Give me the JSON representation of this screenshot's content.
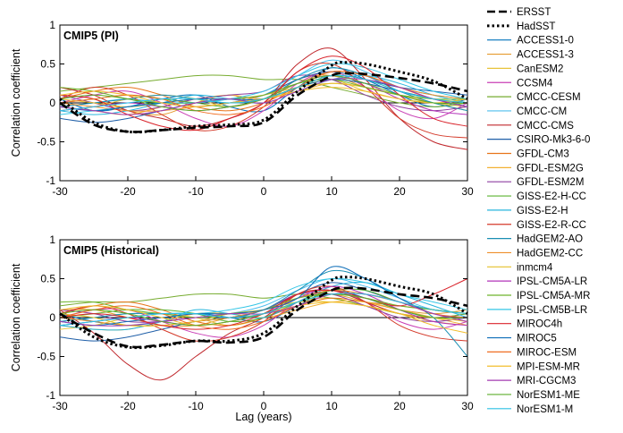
{
  "chart_data": {
    "type": "line",
    "xlabel": "Lag (years)",
    "x_ticks": [
      "-30",
      "-20",
      "-10",
      "0",
      "10",
      "20",
      "30"
    ],
    "y_ticks": [
      "1",
      "0.5",
      "0",
      "-0.5",
      "-1"
    ],
    "xlim": [
      -30,
      30
    ],
    "ylim": [
      -1,
      1
    ],
    "legend": {
      "placement": "right",
      "observations": [
        {
          "name": "ERSST",
          "color": "#000000",
          "dash": "dashed"
        },
        {
          "name": "HadSST",
          "color": "#000000",
          "dash": "dotted"
        }
      ],
      "models": [
        {
          "name": "ACCESS1-0",
          "color": "#0072bd"
        },
        {
          "name": "ACCESS1-3",
          "color": "#e69a2e"
        },
        {
          "name": "CanESM2",
          "color": "#e8c33a"
        },
        {
          "name": "CCSM4",
          "color": "#c93fb5"
        },
        {
          "name": "CMCC-CESM",
          "color": "#77ac30"
        },
        {
          "name": "CMCC-CM",
          "color": "#4dbeee"
        },
        {
          "name": "CMCC-CMS",
          "color": "#c0282d"
        },
        {
          "name": "CSIRO-Mk3-6-0",
          "color": "#1f5fa8"
        },
        {
          "name": "GFDL-CM3",
          "color": "#e8741a"
        },
        {
          "name": "GFDL-ESM2G",
          "color": "#f2b134"
        },
        {
          "name": "GFDL-ESM2M",
          "color": "#8e3fa0"
        },
        {
          "name": "GISS-E2-H-CC",
          "color": "#5bb330"
        },
        {
          "name": "GISS-E2-H",
          "color": "#27b6dd"
        },
        {
          "name": "GISS-E2-R-CC",
          "color": "#d43a2a"
        },
        {
          "name": "HadGEM2-AO",
          "color": "#1a8fb3"
        },
        {
          "name": "HadGEM2-CC",
          "color": "#ee8f2a"
        },
        {
          "name": "inmcm4",
          "color": "#e6c02a"
        },
        {
          "name": "IPSL-CM5A-LR",
          "color": "#b233b8"
        },
        {
          "name": "IPSL-CM5A-MR",
          "color": "#6eb52c"
        },
        {
          "name": "IPSL-CM5B-LR",
          "color": "#35c6e6"
        },
        {
          "name": "MIROC4h",
          "color": "#d9232b"
        },
        {
          "name": "MIROC5",
          "color": "#0e6eb8"
        },
        {
          "name": "MIROC-ESM",
          "color": "#f06e22"
        },
        {
          "name": "MPI-ESM-MR",
          "color": "#f2be2e"
        },
        {
          "name": "MRI-CGCM3",
          "color": "#a33ab0"
        },
        {
          "name": "NorESM1-ME",
          "color": "#5cae2c"
        },
        {
          "name": "NorESM1-M",
          "color": "#2bc0e4"
        }
      ]
    },
    "panels": [
      {
        "title": "CMIP5 (PI)",
        "ylabel": "Correlation coefficient",
        "observations": {
          "x": [
            -30,
            -25,
            -20,
            -15,
            -10,
            -5,
            0,
            5,
            10,
            12,
            15,
            20,
            25,
            30
          ],
          "ERSST": [
            0.0,
            -0.28,
            -0.37,
            -0.35,
            -0.32,
            -0.3,
            -0.25,
            0.1,
            0.35,
            0.38,
            0.37,
            0.32,
            0.25,
            0.15
          ],
          "HadSST": [
            0.05,
            -0.25,
            -0.37,
            -0.35,
            -0.3,
            -0.28,
            -0.22,
            0.15,
            0.48,
            0.52,
            0.5,
            0.4,
            0.28,
            0.05
          ]
        },
        "models": [
          [
            0.05,
            -0.1,
            -0.05,
            0.05,
            0.1,
            -0.05,
            -0.1,
            0.2,
            0.45,
            0.3,
            0.1,
            -0.05,
            0.05
          ],
          [
            0.1,
            0.05,
            -0.1,
            -0.15,
            0.0,
            0.1,
            0.0,
            0.3,
            0.35,
            0.2,
            0.1,
            0.0,
            0.05
          ],
          [
            -0.1,
            -0.05,
            0.05,
            0.1,
            0.05,
            -0.05,
            0.05,
            0.25,
            0.3,
            0.15,
            0.05,
            0.0,
            -0.05
          ],
          [
            0.0,
            0.1,
            0.15,
            0.0,
            -0.2,
            -0.3,
            -0.1,
            0.25,
            0.4,
            0.2,
            -0.1,
            -0.2,
            0.0
          ],
          [
            0.15,
            0.2,
            0.25,
            0.3,
            0.35,
            0.35,
            0.3,
            0.3,
            0.2,
            0.1,
            0.0,
            -0.05,
            0.0
          ],
          [
            -0.05,
            0.0,
            0.05,
            0.0,
            -0.05,
            0.0,
            0.1,
            0.35,
            0.55,
            0.4,
            0.2,
            0.1,
            0.05
          ],
          [
            0.2,
            0.1,
            -0.1,
            -0.2,
            -0.3,
            -0.2,
            0.0,
            0.5,
            0.7,
            0.3,
            -0.2,
            -0.5,
            -0.6
          ],
          [
            -0.2,
            -0.25,
            -0.2,
            -0.1,
            0.0,
            0.05,
            0.1,
            0.3,
            0.4,
            0.3,
            0.2,
            0.15,
            0.1
          ],
          [
            0.05,
            0.15,
            0.2,
            0.1,
            -0.05,
            -0.1,
            0.0,
            0.2,
            0.3,
            0.25,
            0.15,
            0.05,
            0.0
          ],
          [
            -0.05,
            -0.1,
            -0.15,
            -0.05,
            0.05,
            0.1,
            0.05,
            0.15,
            0.25,
            0.2,
            0.1,
            0.0,
            -0.1
          ],
          [
            0.1,
            0.0,
            -0.1,
            -0.05,
            0.05,
            0.1,
            0.15,
            0.35,
            0.3,
            0.1,
            -0.05,
            -0.1,
            -0.05
          ],
          [
            0.0,
            0.05,
            0.1,
            0.05,
            0.0,
            -0.05,
            0.05,
            0.2,
            0.35,
            0.3,
            0.15,
            0.05,
            0.0
          ],
          [
            -0.1,
            -0.15,
            -0.1,
            0.0,
            0.1,
            0.05,
            0.0,
            0.15,
            0.3,
            0.35,
            0.25,
            0.1,
            0.0
          ],
          [
            0.05,
            0.2,
            0.1,
            -0.15,
            -0.35,
            -0.3,
            -0.05,
            0.4,
            0.5,
            0.2,
            -0.2,
            -0.4,
            -0.45
          ],
          [
            -0.05,
            0.0,
            0.05,
            0.1,
            0.05,
            0.0,
            0.05,
            0.3,
            0.45,
            0.35,
            0.15,
            0.0,
            -0.1
          ],
          [
            0.0,
            -0.05,
            -0.1,
            -0.1,
            -0.05,
            0.0,
            0.1,
            0.25,
            0.4,
            0.35,
            0.2,
            0.1,
            0.05
          ],
          [
            0.05,
            0.0,
            -0.05,
            0.0,
            0.05,
            0.05,
            0.1,
            0.2,
            0.25,
            0.2,
            0.1,
            0.05,
            0.0
          ],
          [
            -0.1,
            -0.05,
            0.0,
            -0.05,
            -0.1,
            -0.05,
            0.05,
            0.25,
            0.35,
            0.25,
            0.05,
            -0.1,
            -0.15
          ],
          [
            0.2,
            0.15,
            0.05,
            0.0,
            0.0,
            0.05,
            0.1,
            0.25,
            0.3,
            0.2,
            0.1,
            0.05,
            0.05
          ],
          [
            -0.15,
            -0.1,
            -0.05,
            0.0,
            0.0,
            0.05,
            0.15,
            0.35,
            0.5,
            0.45,
            0.3,
            0.15,
            0.05
          ],
          [
            0.1,
            0.05,
            -0.15,
            -0.3,
            -0.35,
            -0.2,
            0.0,
            0.4,
            0.6,
            0.45,
            0.1,
            -0.2,
            -0.3
          ],
          [
            -0.05,
            -0.1,
            -0.05,
            0.0,
            0.05,
            0.05,
            0.05,
            0.2,
            0.3,
            0.25,
            0.15,
            0.05,
            -0.05
          ],
          [
            0.0,
            0.05,
            0.1,
            0.05,
            -0.1,
            -0.15,
            -0.05,
            0.2,
            0.4,
            0.35,
            0.2,
            0.05,
            0.0
          ],
          [
            0.1,
            0.15,
            0.1,
            0.0,
            -0.05,
            0.0,
            0.05,
            0.15,
            0.2,
            0.15,
            0.05,
            0.0,
            0.05
          ],
          [
            -0.05,
            -0.1,
            -0.15,
            -0.1,
            0.0,
            0.05,
            0.0,
            0.15,
            0.3,
            0.3,
            0.2,
            0.05,
            -0.05
          ],
          [
            0.05,
            0.1,
            0.05,
            -0.05,
            -0.1,
            -0.05,
            0.05,
            0.25,
            0.35,
            0.25,
            0.1,
            0.0,
            0.0
          ],
          [
            -0.1,
            -0.05,
            0.0,
            0.05,
            0.05,
            0.0,
            0.05,
            0.2,
            0.35,
            0.3,
            0.15,
            0.05,
            0.0
          ]
        ]
      },
      {
        "title": "CMIP5 (Historical)",
        "ylabel": "Correlation coefficient",
        "observations": {
          "x": [
            -30,
            -25,
            -20,
            -15,
            -10,
            -5,
            0,
            5,
            10,
            12,
            15,
            20,
            25,
            30
          ],
          "ERSST": [
            0.05,
            -0.2,
            -0.37,
            -0.35,
            -0.3,
            -0.32,
            -0.25,
            0.1,
            0.35,
            0.38,
            0.37,
            0.3,
            0.25,
            0.15
          ],
          "HadSST": [
            0.05,
            -0.25,
            -0.38,
            -0.36,
            -0.3,
            -0.3,
            -0.2,
            0.15,
            0.48,
            0.52,
            0.5,
            0.4,
            0.3,
            0.05
          ]
        },
        "models": [
          [
            0.05,
            -0.05,
            -0.1,
            -0.05,
            0.05,
            0.0,
            -0.05,
            0.15,
            0.35,
            0.25,
            0.1,
            0.0,
            0.05
          ],
          [
            0.1,
            0.1,
            0.0,
            -0.1,
            -0.1,
            0.0,
            0.05,
            0.25,
            0.3,
            0.2,
            0.1,
            0.05,
            0.1
          ],
          [
            -0.15,
            -0.1,
            0.0,
            0.05,
            0.0,
            -0.1,
            0.0,
            0.2,
            0.25,
            0.15,
            0.05,
            -0.05,
            -0.1
          ],
          [
            0.0,
            0.1,
            0.1,
            -0.05,
            -0.2,
            -0.25,
            -0.1,
            0.2,
            0.35,
            0.2,
            -0.05,
            -0.15,
            -0.05
          ],
          [
            0.15,
            0.2,
            0.2,
            0.25,
            0.3,
            0.3,
            0.25,
            0.3,
            0.25,
            0.15,
            0.05,
            0.0,
            0.05
          ],
          [
            -0.05,
            0.0,
            0.05,
            0.05,
            0.0,
            0.05,
            0.15,
            0.35,
            0.5,
            0.4,
            0.25,
            0.1,
            0.05
          ],
          [
            0.1,
            -0.2,
            -0.6,
            -0.8,
            -0.5,
            -0.2,
            0.0,
            0.3,
            0.35,
            0.2,
            0.05,
            0.0,
            0.0
          ],
          [
            -0.25,
            -0.3,
            -0.25,
            -0.15,
            -0.05,
            0.0,
            0.1,
            0.3,
            0.45,
            0.35,
            0.2,
            0.1,
            0.05
          ],
          [
            0.05,
            0.15,
            0.2,
            0.1,
            -0.05,
            -0.1,
            0.0,
            0.15,
            0.25,
            0.2,
            0.15,
            0.1,
            0.05
          ],
          [
            -0.1,
            -0.15,
            -0.15,
            -0.05,
            0.05,
            0.05,
            0.0,
            0.1,
            0.2,
            0.2,
            0.1,
            0.0,
            -0.1
          ],
          [
            0.1,
            0.05,
            -0.05,
            -0.05,
            0.0,
            0.05,
            0.1,
            0.3,
            0.3,
            0.15,
            0.0,
            -0.05,
            0.0
          ],
          [
            0.0,
            0.05,
            0.1,
            0.1,
            0.05,
            -0.05,
            0.0,
            0.2,
            0.35,
            0.35,
            0.2,
            0.1,
            0.05
          ],
          [
            -0.1,
            -0.15,
            -0.15,
            -0.05,
            0.1,
            0.05,
            0.0,
            0.2,
            0.4,
            0.45,
            0.3,
            0.15,
            0.0
          ],
          [
            0.05,
            0.15,
            0.05,
            -0.15,
            -0.3,
            -0.25,
            -0.05,
            0.3,
            0.4,
            0.2,
            -0.1,
            -0.25,
            -0.3
          ],
          [
            -0.05,
            0.0,
            0.05,
            0.05,
            0.05,
            0.0,
            0.1,
            0.35,
            0.6,
            0.5,
            0.25,
            0.0,
            -0.5
          ],
          [
            0.0,
            -0.05,
            -0.1,
            -0.1,
            -0.05,
            0.0,
            0.1,
            0.25,
            0.35,
            0.3,
            0.2,
            0.1,
            0.05
          ],
          [
            0.05,
            0.0,
            -0.1,
            -0.1,
            -0.05,
            0.05,
            0.1,
            0.2,
            0.2,
            0.15,
            0.05,
            0.0,
            -0.05
          ],
          [
            -0.1,
            -0.05,
            0.0,
            -0.05,
            -0.1,
            -0.05,
            0.05,
            0.25,
            0.4,
            0.3,
            0.1,
            -0.05,
            -0.1
          ],
          [
            0.2,
            0.2,
            0.1,
            0.05,
            0.0,
            0.05,
            0.1,
            0.25,
            0.3,
            0.25,
            0.15,
            0.1,
            0.05
          ],
          [
            -0.1,
            -0.05,
            0.0,
            0.05,
            0.05,
            0.1,
            0.2,
            0.4,
            0.5,
            0.45,
            0.3,
            0.2,
            0.1
          ],
          [
            0.0,
            0.05,
            0.0,
            -0.1,
            -0.15,
            -0.1,
            0.05,
            0.3,
            0.35,
            0.25,
            0.15,
            0.3,
            0.5
          ],
          [
            -0.05,
            -0.1,
            -0.05,
            0.0,
            0.05,
            0.05,
            0.1,
            0.25,
            0.65,
            0.5,
            0.25,
            0.05,
            0.0
          ],
          [
            0.0,
            0.1,
            0.15,
            0.05,
            -0.1,
            -0.15,
            -0.05,
            0.15,
            0.3,
            0.3,
            0.2,
            0.05,
            0.0
          ],
          [
            0.1,
            0.15,
            0.1,
            0.0,
            -0.1,
            -0.05,
            0.05,
            0.15,
            0.2,
            0.15,
            0.05,
            -0.1,
            -0.2
          ],
          [
            -0.05,
            -0.1,
            -0.1,
            -0.05,
            0.0,
            0.05,
            0.05,
            0.15,
            0.3,
            0.3,
            0.2,
            0.05,
            -0.05
          ],
          [
            0.05,
            0.1,
            0.05,
            -0.05,
            -0.1,
            -0.05,
            0.05,
            0.2,
            0.3,
            0.25,
            0.1,
            0.0,
            0.0
          ],
          [
            -0.1,
            -0.05,
            0.0,
            0.05,
            0.05,
            0.0,
            0.05,
            0.2,
            0.3,
            0.3,
            0.2,
            0.1,
            0.05
          ]
        ]
      }
    ]
  }
}
